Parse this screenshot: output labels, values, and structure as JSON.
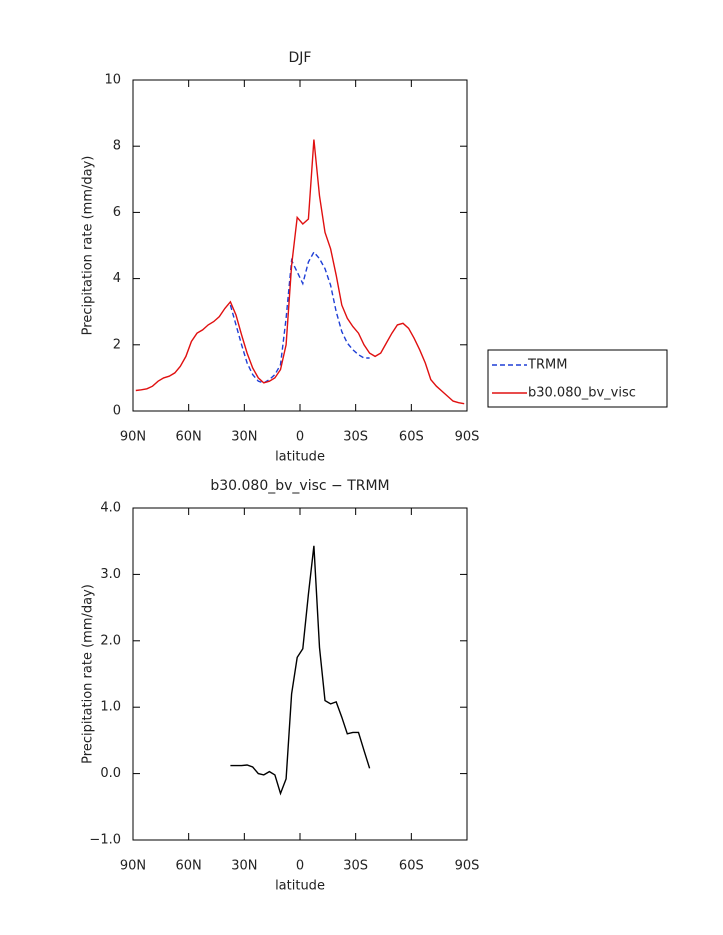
{
  "chart_data": [
    {
      "type": "line",
      "title": "DJF",
      "x_label": "latitude",
      "y_label": "Precipitation rate (mm/day)",
      "x": [
        88.5,
        85.5,
        82.5,
        79.5,
        76.5,
        73.5,
        70.5,
        67.5,
        64.5,
        61.5,
        58.5,
        55.5,
        52.5,
        49.5,
        46.5,
        43.5,
        40.5,
        37.5,
        34.5,
        31.5,
        28.5,
        25.5,
        22.5,
        19.5,
        16.5,
        13.5,
        10.5,
        7.5,
        4.5,
        1.5,
        -1.5,
        -4.5,
        -7.5,
        -10.5,
        -13.5,
        -16.5,
        -19.5,
        -22.5,
        -25.5,
        -28.5,
        -31.5,
        -34.5,
        -37.5,
        -40.5,
        -43.5,
        -46.5,
        -49.5,
        -52.5,
        -55.5,
        -58.5,
        -61.5,
        -64.5,
        -67.5,
        -70.5,
        -73.5,
        -76.5,
        -79.5,
        -82.5,
        -85.5,
        -88.5
      ],
      "series": [
        {
          "name": "TRMM",
          "color": "#1f3fd6",
          "style": "dashed",
          "values": [
            null,
            null,
            null,
            null,
            null,
            null,
            null,
            null,
            null,
            null,
            null,
            null,
            null,
            null,
            null,
            null,
            null,
            3.2,
            2.6,
            2.0,
            1.45,
            1.1,
            0.9,
            0.85,
            0.95,
            1.1,
            1.4,
            2.8,
            4.55,
            4.2,
            3.85,
            4.5,
            4.8,
            4.6,
            4.3,
            3.8,
            3.0,
            2.4,
            2.05,
            1.85,
            1.7,
            1.6,
            1.6,
            null,
            null,
            null,
            null,
            null,
            null,
            null,
            null,
            null,
            null,
            null,
            null,
            null,
            null,
            null,
            null,
            null
          ]
        },
        {
          "name": "b30.080_bv_visc",
          "color": "#e01010",
          "style": "solid",
          "values": [
            0.62,
            0.64,
            0.67,
            0.75,
            0.9,
            1.0,
            1.05,
            1.15,
            1.35,
            1.65,
            2.1,
            2.35,
            2.45,
            2.6,
            2.7,
            2.85,
            3.1,
            3.3,
            2.9,
            2.3,
            1.75,
            1.3,
            1.0,
            0.85,
            0.9,
            1.0,
            1.25,
            2.0,
            4.4,
            5.85,
            5.65,
            5.8,
            8.2,
            6.5,
            5.4,
            4.9,
            4.1,
            3.2,
            2.8,
            2.55,
            2.35,
            2.0,
            1.75,
            1.65,
            1.75,
            2.05,
            2.35,
            2.6,
            2.65,
            2.5,
            2.2,
            1.85,
            1.45,
            0.95,
            0.75,
            0.6,
            0.45,
            0.3,
            0.25,
            0.22
          ]
        }
      ],
      "xlim": [
        90,
        -90
      ],
      "xticks": [
        {
          "value": 90,
          "label": "90N"
        },
        {
          "value": 60,
          "label": "60N"
        },
        {
          "value": 30,
          "label": "30N"
        },
        0,
        {
          "value": -30,
          "label": "30S"
        },
        {
          "value": -60,
          "label": "60S"
        },
        {
          "value": -90,
          "label": "90S"
        }
      ],
      "ylim": [
        0,
        10
      ],
      "yticks": [
        0,
        2,
        4,
        6,
        8,
        10
      ],
      "legend": "right"
    },
    {
      "type": "line",
      "title": "b30.080_bv_visc − TRMM",
      "x_label": "latitude",
      "y_label": "Precipitation rate (mm/day)",
      "x": [
        37.5,
        34.5,
        31.5,
        28.5,
        25.5,
        22.5,
        19.5,
        16.5,
        13.5,
        10.5,
        7.5,
        4.5,
        1.5,
        -1.5,
        -4.5,
        -7.5,
        -10.5,
        -13.5,
        -16.5,
        -19.5,
        -22.5,
        -25.5,
        -28.5,
        -31.5,
        -34.5,
        -37.5
      ],
      "series": [
        {
          "color": "#000000",
          "style": "solid",
          "values": [
            0.12,
            0.12,
            0.12,
            0.13,
            0.1,
            0.0,
            -0.02,
            0.03,
            -0.02,
            -0.3,
            -0.08,
            1.2,
            1.75,
            1.88,
            2.7,
            3.43,
            1.9,
            1.1,
            1.05,
            1.08,
            0.85,
            0.6,
            0.62,
            0.62,
            0.35,
            0.08
          ]
        }
      ],
      "xlim": [
        90,
        -90
      ],
      "xticks": [
        {
          "value": 90,
          "label": "90N"
        },
        {
          "value": 60,
          "label": "60N"
        },
        {
          "value": 30,
          "label": "30N"
        },
        0,
        {
          "value": -30,
          "label": "30S"
        },
        {
          "value": -60,
          "label": "60S"
        },
        {
          "value": -90,
          "label": "90S"
        }
      ],
      "ylim": [
        -1,
        4
      ],
      "yticks": [
        {
          "value": -1,
          "label": "−1.0"
        },
        {
          "value": 0,
          "label": "0.0"
        },
        {
          "value": 1,
          "label": "1.0"
        },
        {
          "value": 2,
          "label": "2.0"
        },
        {
          "value": 3,
          "label": "3.0"
        },
        {
          "value": 4,
          "label": "4.0"
        }
      ]
    }
  ]
}
